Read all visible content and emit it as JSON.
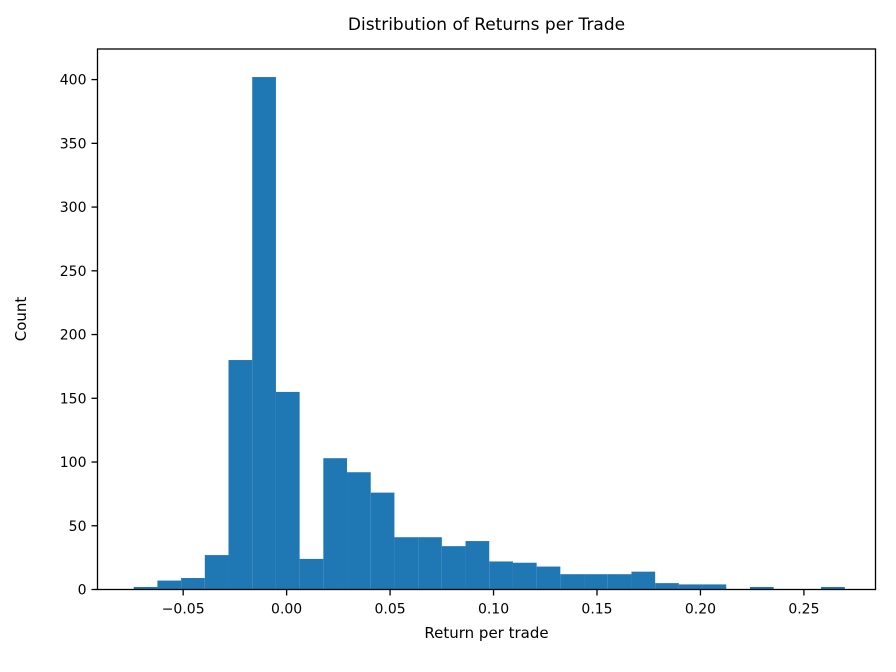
{
  "chart_data": {
    "type": "bar",
    "subtype": "histogram",
    "title": "Distribution of Returns per Trade",
    "xlabel": "Return per trade",
    "ylabel": "Count",
    "bar_color": "#1f77b4",
    "background_color": "#ffffff",
    "grid": false,
    "legend": null,
    "bin_start": -0.0739,
    "bin_width": 0.011455,
    "counts": [
      2,
      7,
      9,
      27,
      180,
      402,
      155,
      24,
      103,
      92,
      76,
      41,
      41,
      34,
      38,
      22,
      21,
      18,
      12,
      12,
      12,
      14,
      5,
      4,
      4,
      0,
      2,
      0,
      0,
      2
    ],
    "xlim": [
      -0.0914,
      0.2846
    ],
    "ylim": [
      0,
      424
    ],
    "xticks": [
      {
        "value": -0.05,
        "label": "−0.05"
      },
      {
        "value": 0.0,
        "label": "0.00"
      },
      {
        "value": 0.05,
        "label": "0.05"
      },
      {
        "value": 0.1,
        "label": "0.10"
      },
      {
        "value": 0.15,
        "label": "0.15"
      },
      {
        "value": 0.2,
        "label": "0.20"
      },
      {
        "value": 0.25,
        "label": "0.25"
      }
    ],
    "yticks": [
      {
        "value": 0,
        "label": "0"
      },
      {
        "value": 50,
        "label": "50"
      },
      {
        "value": 100,
        "label": "100"
      },
      {
        "value": 150,
        "label": "150"
      },
      {
        "value": 200,
        "label": "200"
      },
      {
        "value": 250,
        "label": "250"
      },
      {
        "value": 300,
        "label": "300"
      },
      {
        "value": 350,
        "label": "350"
      },
      {
        "value": 400,
        "label": "400"
      }
    ]
  }
}
